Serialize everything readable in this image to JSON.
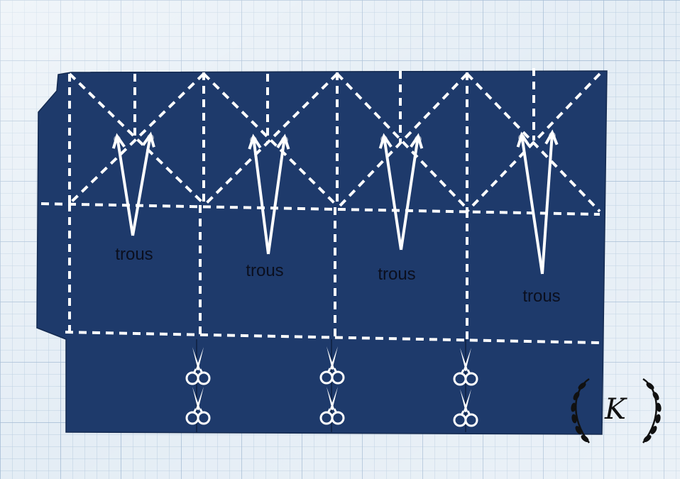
{
  "photo": {
    "hole_label": "trous",
    "logo_letter": "K",
    "colors": {
      "paper": "#1e3a6b",
      "paper_shadow": "#17305a",
      "grid_background": "#e4edf5",
      "grid_line": "#b9cde0",
      "grid_line_major": "#9fb8d2",
      "dashed_fold": "#ffffff",
      "arrow": "#ffffff",
      "label_text": "#0b0f1e",
      "logo": "#111111"
    },
    "icons": [
      "scissors-icon",
      "laurel-wreath-icon",
      "double-arrow-icon",
      "hole-dot-icon"
    ]
  }
}
